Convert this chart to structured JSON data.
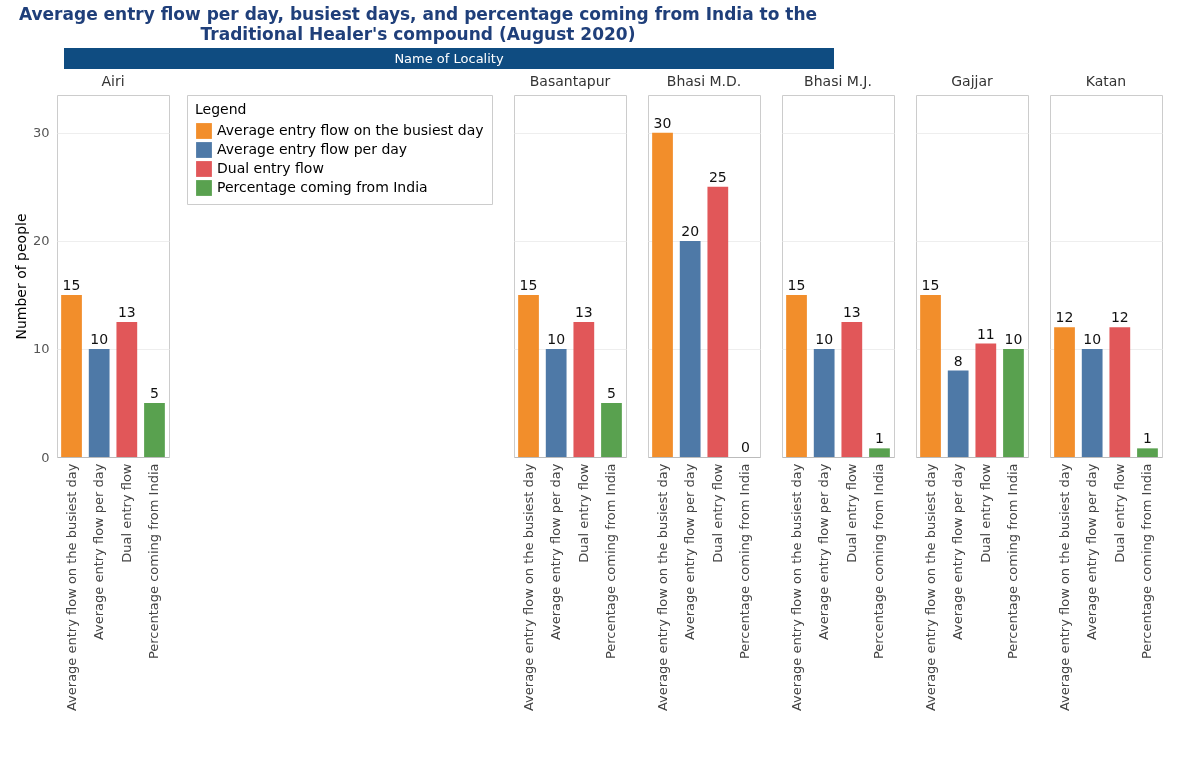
{
  "chart_data": [
    {
      "type": "bar",
      "title": "Average entry flow per day, busiest days, and percentage coming from India to the Traditional Healer's compound (August 2020)",
      "annotations": [
        "Name of Locality"
      ],
      "subtitle": "Airi",
      "ylabel": "Number of people",
      "legend_title": "Legend",
      "legend": "right",
      "grid": "y",
      "ylim": [
        0,
        33.5
      ],
      "yticks": [
        0,
        10,
        20,
        30
      ],
      "categories": [
        "Average entry flow on the busiest day",
        "Average entry flow per day",
        "Dual entry flow",
        "Percentage coming from India"
      ],
      "series": [
        {
          "name": "Average entry flow on the busiest day",
          "color": "#f28e2b",
          "values": [
            15,
            null,
            null,
            null
          ],
          "value_labels": [
            "15",
            null,
            null,
            null
          ]
        },
        {
          "name": "Average entry flow per day",
          "color": "#4e79a7",
          "values": [
            null,
            10,
            null,
            null
          ],
          "value_labels": [
            null,
            "10",
            null,
            null
          ]
        },
        {
          "name": "Dual entry flow",
          "color": "#e15759",
          "values": [
            null,
            null,
            12.5,
            null
          ],
          "value_labels": [
            null,
            null,
            "13",
            null
          ]
        },
        {
          "name": "Percentage coming from India",
          "color": "#59a14f",
          "values": [
            null,
            null,
            null,
            5
          ],
          "value_labels": [
            null,
            null,
            null,
            "5"
          ]
        }
      ]
    },
    {
      "type": "bar",
      "subtitle": "Basantapur",
      "grid": "y",
      "tick_labels": "x",
      "ylim": [
        0,
        33.5
      ],
      "yticks": [
        0,
        10,
        20,
        30
      ],
      "categories": [
        "Average entry flow on the busiest day",
        "Average entry flow per day",
        "Dual entry flow",
        "Percentage coming from India"
      ],
      "series": [
        {
          "color": "#f28e2b",
          "values": [
            15,
            null,
            null,
            null
          ],
          "value_labels": [
            "15",
            null,
            null,
            null
          ]
        },
        {
          "color": "#4e79a7",
          "values": [
            null,
            10,
            null,
            null
          ],
          "value_labels": [
            null,
            "10",
            null,
            null
          ]
        },
        {
          "color": "#e15759",
          "values": [
            null,
            null,
            12.5,
            null
          ],
          "value_labels": [
            null,
            null,
            "13",
            null
          ]
        },
        {
          "color": "#59a14f",
          "values": [
            null,
            null,
            null,
            5
          ],
          "value_labels": [
            null,
            null,
            null,
            "5"
          ]
        }
      ]
    },
    {
      "type": "bar",
      "subtitle": "Bhasi M.D.",
      "grid": "y",
      "tick_labels": "x",
      "ylim": [
        0,
        33.5
      ],
      "yticks": [
        0,
        10,
        20,
        30
      ],
      "categories": [
        "Average entry flow on the busiest day",
        "Average entry flow per day",
        "Dual entry flow",
        "Percentage coming from India"
      ],
      "series": [
        {
          "color": "#f28e2b",
          "values": [
            30,
            null,
            null,
            null
          ],
          "value_labels": [
            "30",
            null,
            null,
            null
          ]
        },
        {
          "color": "#4e79a7",
          "values": [
            null,
            20,
            null,
            null
          ],
          "value_labels": [
            null,
            "20",
            null,
            null
          ]
        },
        {
          "color": "#e15759",
          "values": [
            null,
            null,
            25,
            null
          ],
          "value_labels": [
            null,
            null,
            "25",
            null
          ]
        },
        {
          "color": "#59a14f",
          "values": [
            null,
            null,
            null,
            0
          ],
          "value_labels": [
            null,
            null,
            null,
            "0"
          ]
        }
      ]
    },
    {
      "type": "bar",
      "subtitle": "Bhasi M.J.",
      "grid": "y",
      "tick_labels": "x",
      "ylim": [
        0,
        33.5
      ],
      "yticks": [
        0,
        10,
        20,
        30
      ],
      "categories": [
        "Average entry flow on the busiest day",
        "Average entry flow per day",
        "Dual entry flow",
        "Percentage coming from India"
      ],
      "series": [
        {
          "color": "#f28e2b",
          "values": [
            15,
            null,
            null,
            null
          ],
          "value_labels": [
            "15",
            null,
            null,
            null
          ]
        },
        {
          "color": "#4e79a7",
          "values": [
            null,
            10,
            null,
            null
          ],
          "value_labels": [
            null,
            "10",
            null,
            null
          ]
        },
        {
          "color": "#e15759",
          "values": [
            null,
            null,
            12.5,
            null
          ],
          "value_labels": [
            null,
            null,
            "13",
            null
          ]
        },
        {
          "color": "#59a14f",
          "values": [
            null,
            null,
            null,
            0.8
          ],
          "value_labels": [
            null,
            null,
            null,
            "1"
          ]
        }
      ]
    },
    {
      "type": "bar",
      "subtitle": "Gajjar",
      "grid": "y",
      "tick_labels": "x",
      "ylim": [
        0,
        33.5
      ],
      "yticks": [
        0,
        10,
        20,
        30
      ],
      "categories": [
        "Average entry flow on the busiest day",
        "Average entry flow per day",
        "Dual entry flow",
        "Percentage coming from India"
      ],
      "series": [
        {
          "color": "#f28e2b",
          "values": [
            15,
            null,
            null,
            null
          ],
          "value_labels": [
            "15",
            null,
            null,
            null
          ]
        },
        {
          "color": "#4e79a7",
          "values": [
            null,
            8,
            null,
            null
          ],
          "value_labels": [
            null,
            "8",
            null,
            null
          ]
        },
        {
          "color": "#e15759",
          "values": [
            null,
            null,
            10.5,
            null
          ],
          "value_labels": [
            null,
            null,
            "11",
            null
          ]
        },
        {
          "color": "#59a14f",
          "values": [
            null,
            null,
            null,
            10
          ],
          "value_labels": [
            null,
            null,
            null,
            "10"
          ]
        }
      ]
    },
    {
      "type": "bar",
      "subtitle": "Katan",
      "grid": "y",
      "tick_labels": "x",
      "ylim": [
        0,
        33.5
      ],
      "yticks": [
        0,
        10,
        20,
        30
      ],
      "categories": [
        "Average entry flow on the busiest day",
        "Average entry flow per day",
        "Dual entry flow",
        "Percentage coming from India"
      ],
      "series": [
        {
          "color": "#f28e2b",
          "values": [
            12,
            null,
            null,
            null
          ],
          "value_labels": [
            "12",
            null,
            null,
            null
          ]
        },
        {
          "color": "#4e79a7",
          "values": [
            null,
            10,
            null,
            null
          ],
          "value_labels": [
            null,
            "10",
            null,
            null
          ]
        },
        {
          "color": "#e15759",
          "values": [
            null,
            null,
            12,
            null
          ],
          "value_labels": [
            null,
            null,
            "12",
            null
          ]
        },
        {
          "color": "#59a14f",
          "values": [
            null,
            null,
            null,
            0.8
          ],
          "value_labels": [
            null,
            null,
            null,
            "1"
          ]
        }
      ]
    }
  ]
}
